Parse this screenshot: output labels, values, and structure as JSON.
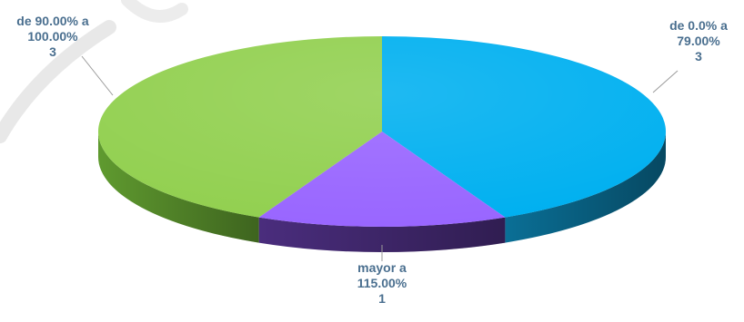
{
  "chart_data": {
    "type": "pie",
    "style": "3d",
    "categories": [
      "de 0.0% a 79.00%",
      "mayor a 115.00%",
      "de 90.00% a 100.00%"
    ],
    "values": [
      3,
      1,
      3
    ],
    "labels": [
      {
        "lines": [
          "de 0.0% a",
          "79.00%",
          "3"
        ]
      },
      {
        "lines": [
          "mayor a",
          "115.00%",
          "1"
        ]
      },
      {
        "lines": [
          "de 90.00% a",
          "100.00%",
          "3"
        ]
      }
    ],
    "colors": [
      "#00b0f0",
      "#9966ff",
      "#92d050"
    ],
    "side_colors": [
      "#0a6f96",
      "#4a2d7d",
      "#5f9a2f"
    ],
    "title": "",
    "legend": "none"
  },
  "colors": {
    "label_text": "#4a6f8f",
    "leader_line": "#9a9a9a"
  }
}
